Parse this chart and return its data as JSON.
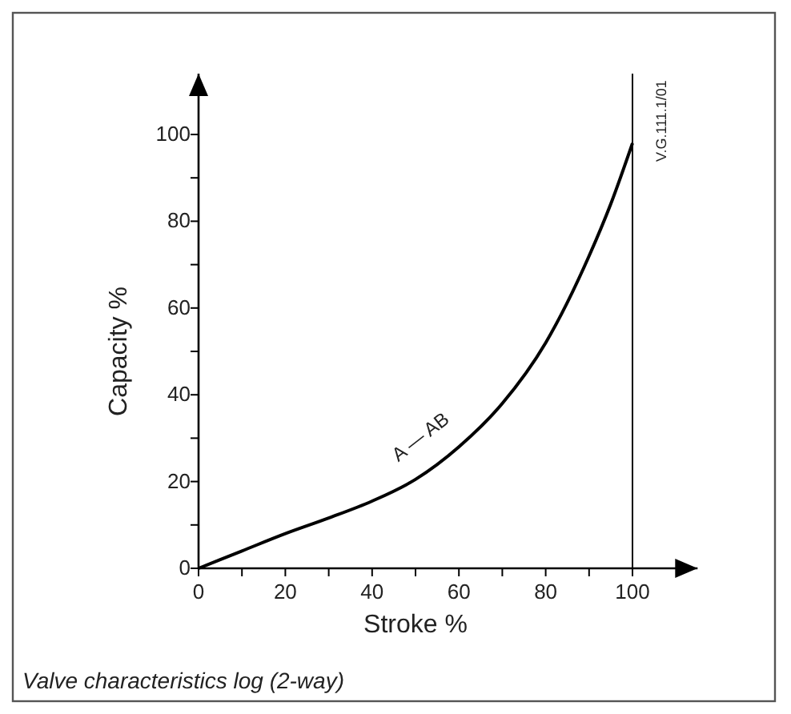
{
  "chart_data": {
    "type": "line",
    "title": "Valve characteristics log (2-way)",
    "xlabel": "Stroke %",
    "ylabel": "Capacity %",
    "x": [
      0,
      10,
      20,
      30,
      40,
      50,
      60,
      70,
      80,
      90,
      95,
      100
    ],
    "series": [
      {
        "color": "#000000",
        "values": [
          0,
          4,
          8,
          11.6,
          15.5,
          20.5,
          28,
          38,
          52,
          72,
          84,
          98
        ]
      }
    ],
    "xlim": [
      0,
      115
    ],
    "ylim": [
      0,
      114
    ],
    "xticks": [
      0,
      {
        "value": 10,
        "label": null
      },
      20,
      {
        "value": 30,
        "label": null
      },
      40,
      {
        "value": 50,
        "label": null
      },
      60,
      {
        "value": 70,
        "label": null
      },
      80,
      {
        "value": 90,
        "label": null
      },
      100
    ],
    "yticks": [
      0,
      {
        "value": 10,
        "label": null
      },
      20,
      {
        "value": 30,
        "label": null
      },
      40,
      {
        "value": 50,
        "label": null
      },
      60,
      {
        "value": 70,
        "label": null
      },
      80,
      {
        "value": 90,
        "label": null
      },
      100
    ],
    "ref_lines": [
      {
        "axis": "x",
        "value": 100,
        "color": "#000000"
      }
    ],
    "annotations": [
      "A — AB",
      "V.G.111.1/01"
    ],
    "line_style": "solid"
  }
}
